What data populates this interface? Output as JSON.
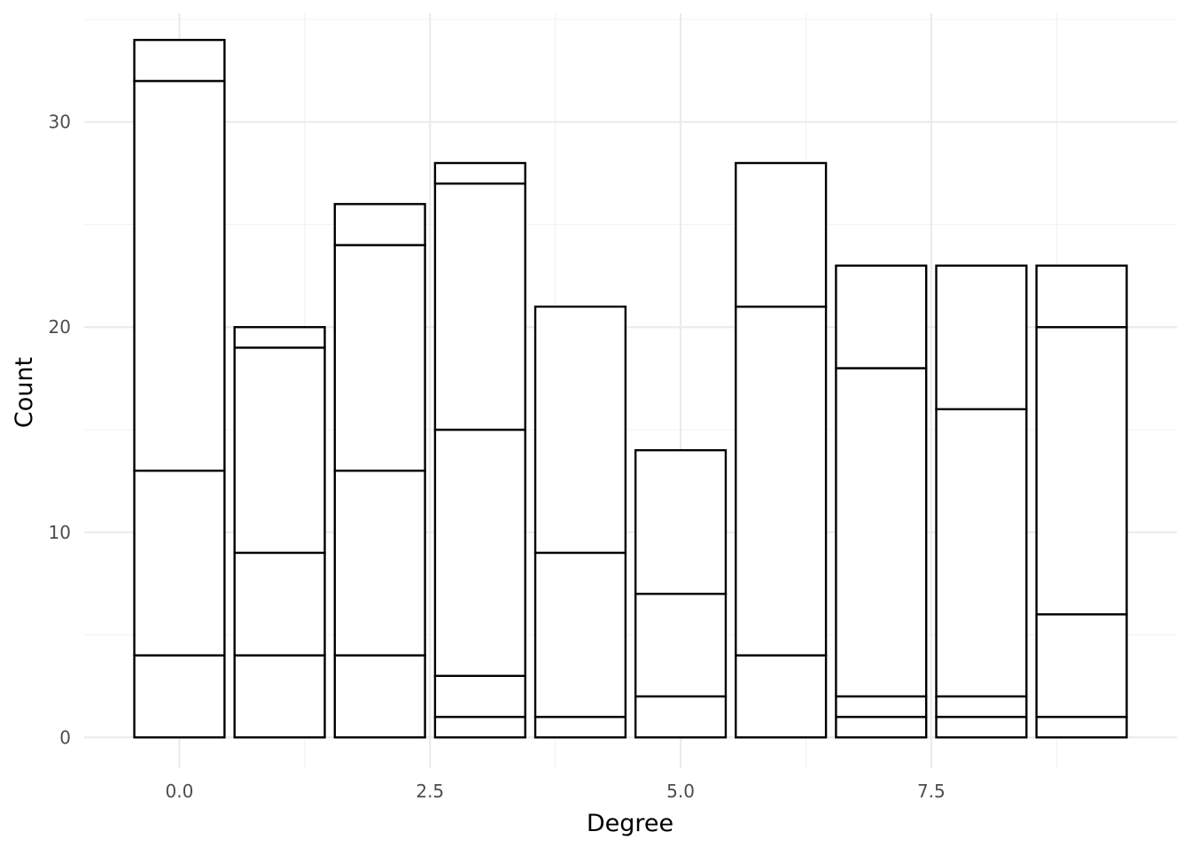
{
  "chart_data": {
    "type": "bar",
    "stacked": true,
    "title": "",
    "xlabel": "Degree",
    "ylabel": "Count",
    "x": [
      0,
      1,
      2,
      3,
      4,
      5,
      6,
      7,
      8,
      9
    ],
    "bar_width": 0.9,
    "stack_boundaries": [
      [
        4,
        13,
        32,
        34
      ],
      [
        4,
        9,
        19,
        20
      ],
      [
        4,
        13,
        24,
        26
      ],
      [
        1,
        3,
        15,
        27,
        28
      ],
      [
        1,
        9,
        21
      ],
      [
        2,
        7,
        14
      ],
      [
        4,
        21,
        28
      ],
      [
        1,
        2,
        18,
        23
      ],
      [
        1,
        2,
        16,
        23
      ],
      [
        1,
        6,
        20,
        23
      ]
    ],
    "totals": [
      34,
      20,
      26,
      28,
      21,
      14,
      28,
      23,
      23,
      23
    ],
    "xlim": [
      -0.95,
      9.95
    ],
    "ylim": [
      -1.5,
      35.3
    ],
    "x_ticks": [
      0.0,
      2.5,
      5.0,
      7.5
    ],
    "x_tick_labels": [
      "0.0",
      "2.5",
      "5.0",
      "7.5"
    ],
    "x_minor_ticks": [
      1.25,
      3.75,
      6.25,
      8.75
    ],
    "y_ticks": [
      0,
      10,
      20,
      30
    ],
    "y_tick_labels": [
      "0",
      "10",
      "20",
      "30"
    ],
    "y_minor_ticks": [
      5,
      15,
      25,
      35
    ],
    "grid": true,
    "legend": "none",
    "colors": {
      "bar_fill": "#ffffff",
      "bar_stroke": "#000000",
      "grid_major": "#ebebeb",
      "grid_minor": "#f2f2f2",
      "tick_text": "#4d4d4d"
    }
  }
}
